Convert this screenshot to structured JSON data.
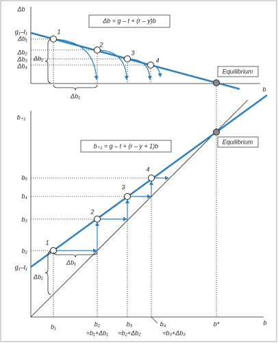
{
  "top_panel": {
    "y_axis_label": "Δb",
    "x_axis_label": "b",
    "equation": "Δb = g – t + (r – y)b",
    "equilibrium_label": "Equilibrium",
    "y_labels": [
      "g₁–t₁",
      "Δb₁",
      "Δb₂",
      "Δb₃",
      "Δb₄"
    ],
    "point_labels": [
      "1",
      "2",
      "3",
      "4"
    ],
    "brace_labels": [
      "Δb₁",
      "Δb₁"
    ]
  },
  "bottom_panel": {
    "y_axis_label": "b₊₁",
    "x_axis_label": "b",
    "equation": "b₊₁ = g – t + (r – y + 1)b",
    "equilibrium_label": "Equilibrium",
    "y_labels": [
      "b₅",
      "b₄",
      "b₃",
      "b₂",
      "g₁–t₁"
    ],
    "point_labels": [
      "1",
      "2",
      "3",
      "4"
    ],
    "brace_labels": [
      "Δb₁",
      "Δb₁"
    ],
    "x_labels": [
      {
        "label": "b₁"
      },
      {
        "label": "b₂",
        "note": "=b₁+Δb₁"
      },
      {
        "label": "b₃",
        "note": "=b₂+Δb₂"
      },
      {
        "label": "b₄",
        "note": "=b₃+Δb₃"
      },
      {
        "label": "b*"
      }
    ]
  }
}
